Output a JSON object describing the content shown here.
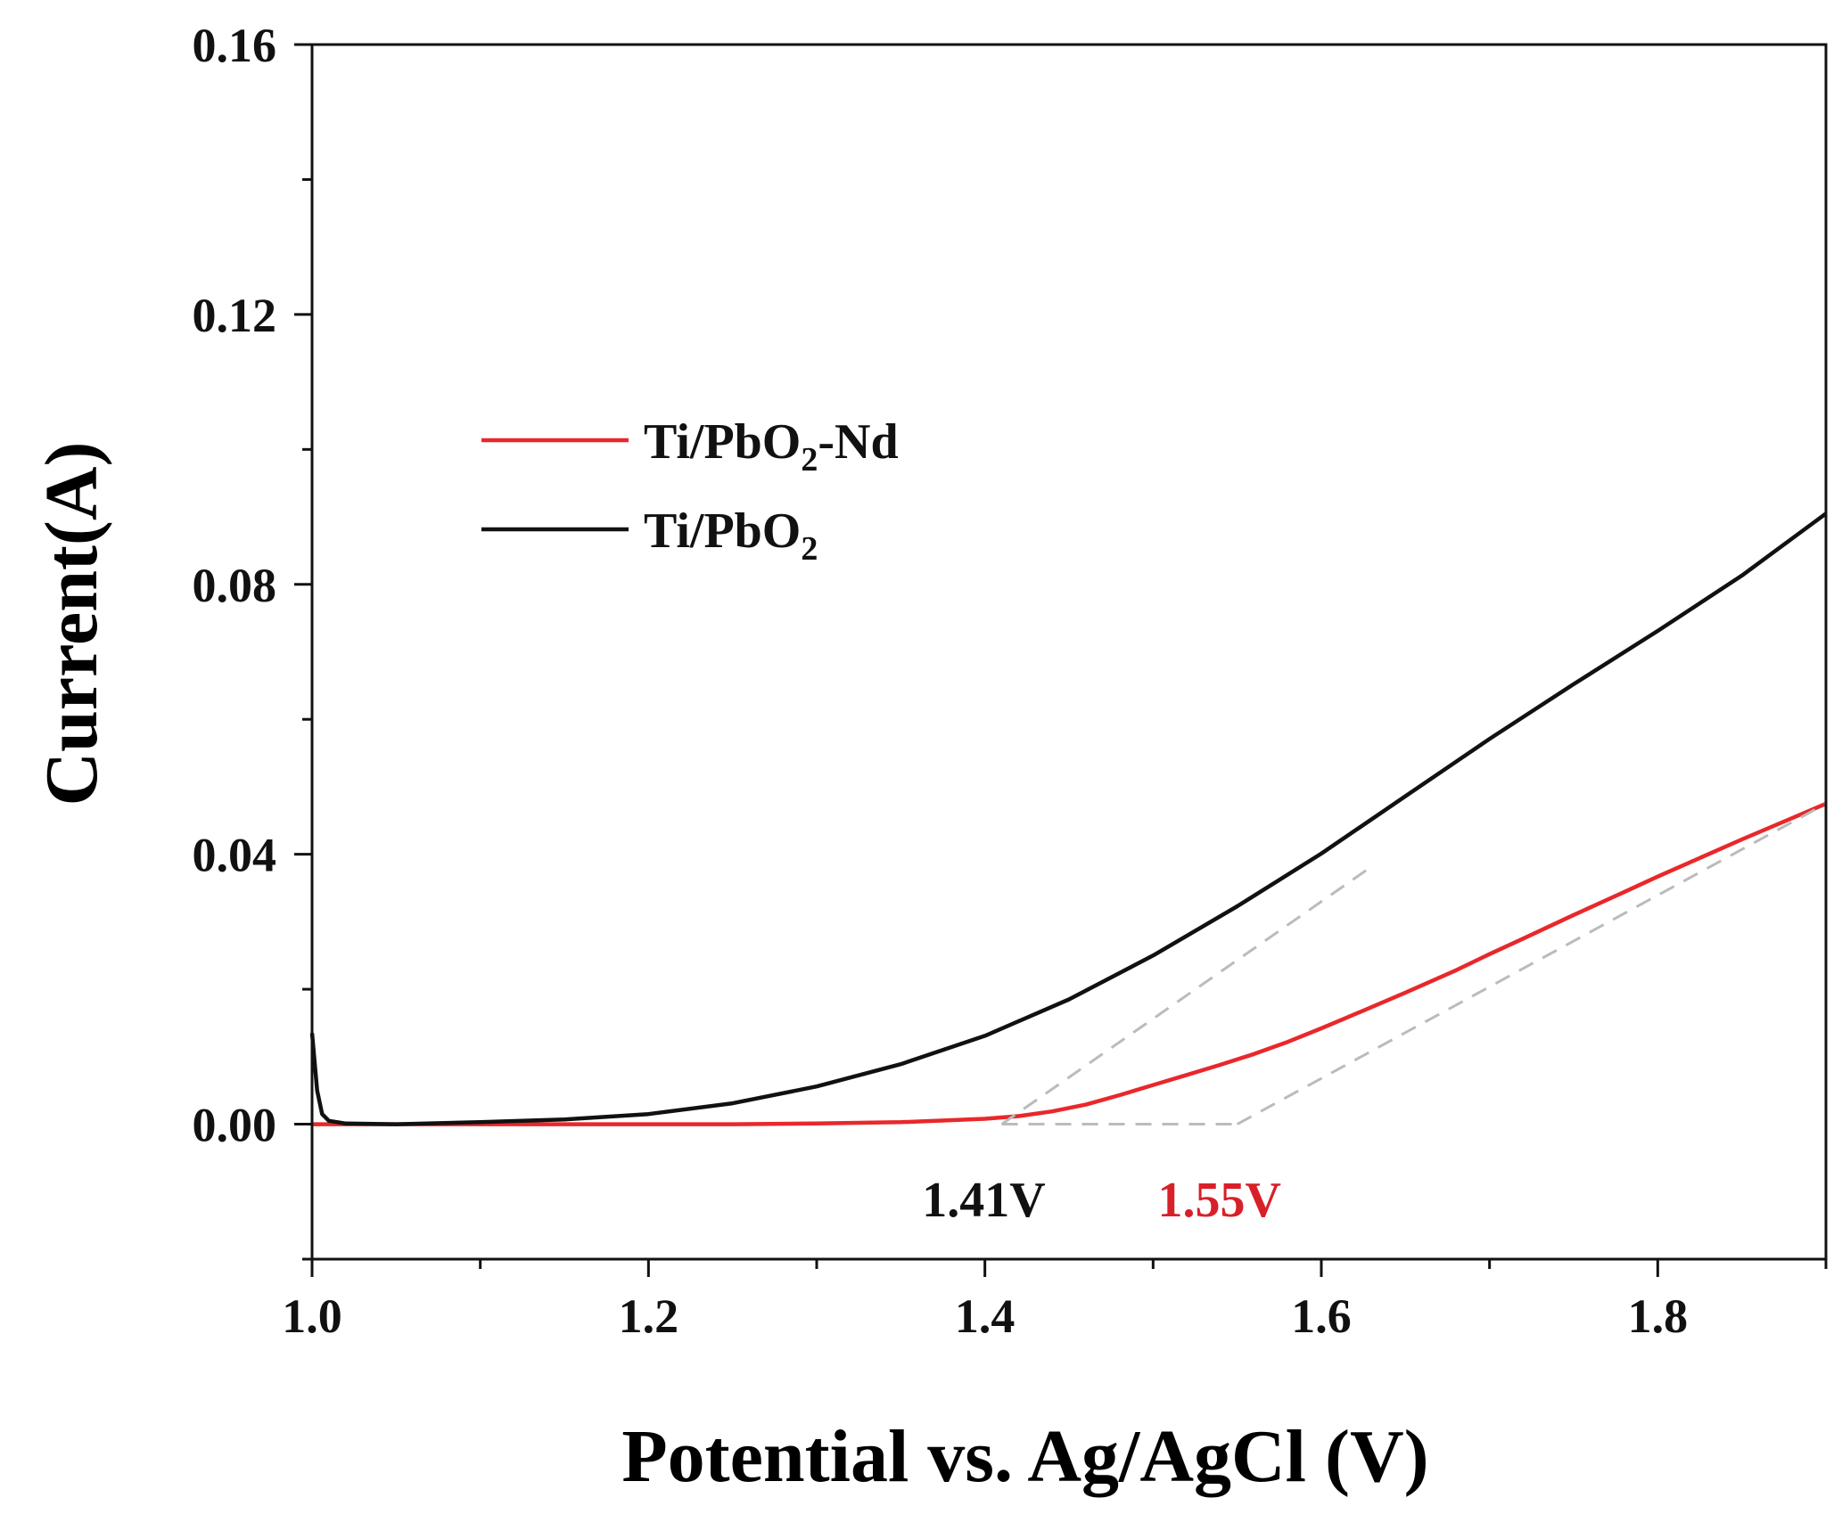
{
  "chart_data": {
    "type": "line",
    "title": "",
    "xlabel": "Potential vs. Ag/AgCl (V)",
    "ylabel": "Current(A)",
    "xlim": [
      1.0,
      1.9
    ],
    "ylim": [
      -0.02,
      0.16
    ],
    "x_ticks": [
      1.0,
      1.2,
      1.4,
      1.6,
      1.8
    ],
    "x_tick_labels": [
      "1.0",
      "1.2",
      "1.4",
      "1.6",
      "1.8"
    ],
    "x_minor_ticks": [
      1.1,
      1.3,
      1.5,
      1.7,
      1.9
    ],
    "y_ticks": [
      0.0,
      0.04,
      0.08,
      0.12,
      0.16
    ],
    "y_tick_labels": [
      "0.00",
      "0.04",
      "0.08",
      "0.12",
      "0.16"
    ],
    "y_minor_ticks": [
      -0.02,
      0.02,
      0.06,
      0.1,
      0.14
    ],
    "grid": false,
    "legend_position": "upper-left",
    "series": [
      {
        "name": "Ti/PbO2-Nd",
        "legend_main": "Ti/PbO",
        "legend_sub": "2",
        "legend_suffix": "-Nd",
        "color": "#e8282b",
        "x": [
          1.0,
          1.05,
          1.1,
          1.15,
          1.2,
          1.25,
          1.3,
          1.35,
          1.4,
          1.42,
          1.44,
          1.46,
          1.48,
          1.5,
          1.52,
          1.54,
          1.56,
          1.58,
          1.6,
          1.62,
          1.65,
          1.68,
          1.7,
          1.72,
          1.75,
          1.78,
          1.8,
          1.85,
          1.9
        ],
        "y": [
          0.0,
          0.0,
          0.0,
          0.0,
          0.0,
          0.0,
          0.0001,
          0.0003,
          0.0008,
          0.0012,
          0.0019,
          0.0029,
          0.0043,
          0.0058,
          0.0073,
          0.0088,
          0.0104,
          0.0122,
          0.0142,
          0.0163,
          0.0195,
          0.0228,
          0.0252,
          0.0275,
          0.031,
          0.0344,
          0.0367,
          0.0422,
          0.0475
        ]
      },
      {
        "name": "Ti/PbO2",
        "legend_main": "Ti/PbO",
        "legend_sub": "2",
        "legend_suffix": "",
        "color": "#111111",
        "x": [
          1.0,
          1.003,
          1.006,
          1.01,
          1.02,
          1.05,
          1.1,
          1.15,
          1.2,
          1.25,
          1.3,
          1.35,
          1.4,
          1.45,
          1.5,
          1.55,
          1.6,
          1.65,
          1.7,
          1.75,
          1.8,
          1.85,
          1.9
        ],
        "y": [
          0.0135,
          0.005,
          0.0015,
          0.0005,
          0.0001,
          0.0,
          0.0003,
          0.0007,
          0.0015,
          0.0031,
          0.0056,
          0.0089,
          0.0131,
          0.0185,
          0.025,
          0.0323,
          0.0401,
          0.0486,
          0.0571,
          0.0652,
          0.0731,
          0.0813,
          0.0905
        ]
      }
    ],
    "tangent_lines": [
      {
        "x": [
          1.41,
          1.63
        ],
        "y": [
          0.0,
          0.0382
        ],
        "color": "#bbbbbb"
      },
      {
        "x": [
          1.55,
          1.9
        ],
        "y": [
          0.0,
          0.0475
        ],
        "color": "#bbbbbb"
      },
      {
        "x": [
          1.41,
          1.55
        ],
        "y": [
          0.0,
          0.0
        ],
        "color": "#bbbbbb"
      }
    ],
    "annotations": [
      {
        "text": "1.41V",
        "x": 1.41,
        "y": -0.011,
        "color": "#111111"
      },
      {
        "text": "1.55V",
        "x": 1.55,
        "y": -0.011,
        "color": "#d8202a"
      }
    ]
  }
}
